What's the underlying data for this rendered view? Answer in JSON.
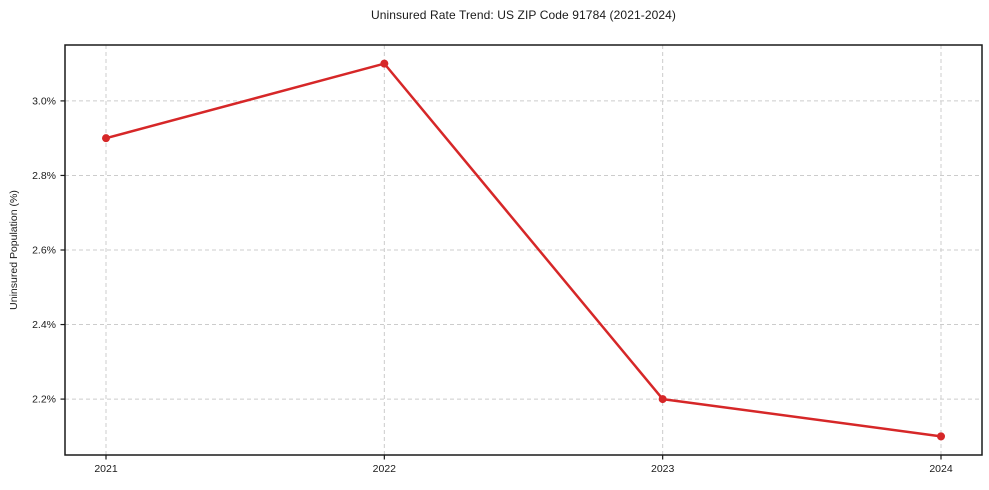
{
  "figure": {
    "background": "#ffffff"
  },
  "chart_data": {
    "type": "line",
    "title": "Uninsured Rate Trend: US ZIP Code 91784 (2021-2024)",
    "xlabel": "",
    "ylabel": "Uninsured Population (%)",
    "x": [
      2021,
      2022,
      2023,
      2024
    ],
    "x_tick_labels": [
      "2021",
      "2022",
      "2023",
      "2024"
    ],
    "series": [
      {
        "name": "uninsured-rate",
        "values": [
          2.9,
          3.1,
          2.2,
          2.1
        ],
        "color": "#d62728",
        "marker": "circle"
      }
    ],
    "y_ticks": [
      2.2,
      2.4,
      2.6,
      2.8,
      3.0
    ],
    "y_tick_labels": [
      "2.2%",
      "2.4%",
      "2.6%",
      "2.8%",
      "3.0%"
    ],
    "ylim": [
      2.05,
      3.15
    ],
    "grid": true,
    "grid_color": "#cccccc",
    "axis_color": "#1a1a1a",
    "legend": "none"
  }
}
